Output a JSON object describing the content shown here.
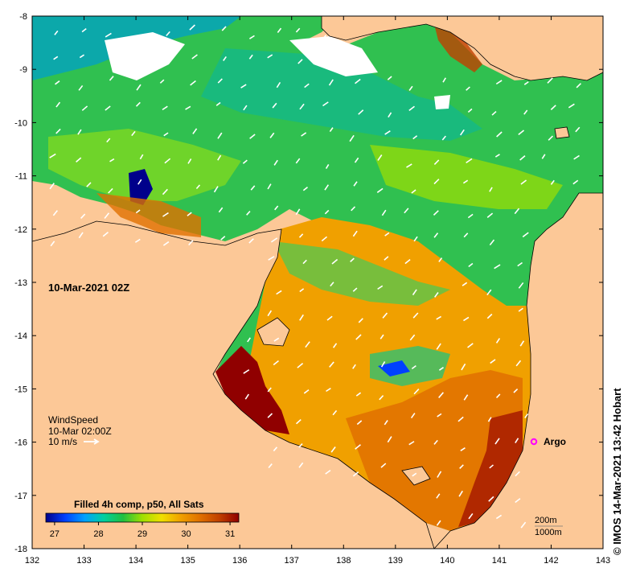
{
  "map": {
    "date_label": "10-Mar-2021 02Z",
    "wind_legend": {
      "title": "WindSpeed",
      "time": "10-Mar 02:00Z",
      "scale": "10 m/s"
    },
    "colorbar": {
      "title": "Filled 4h comp, p50, All Sats",
      "ticks": [
        "27",
        "28",
        "29",
        "30",
        "31"
      ],
      "min": 26.8,
      "max": 31.2,
      "colors": [
        "#00008b",
        "#0040ff",
        "#00a0ff",
        "#00d0a0",
        "#20c040",
        "#a0e000",
        "#f0e000",
        "#f0a000",
        "#e07000",
        "#c04000",
        "#900000"
      ]
    },
    "argo_label": "Argo",
    "contour_labels": [
      "200m",
      "1000m"
    ],
    "x_ticks": [
      "132",
      "133",
      "134",
      "135",
      "136",
      "137",
      "138",
      "139",
      "140",
      "141",
      "142",
      "143"
    ],
    "y_ticks": [
      "-8",
      "-9",
      "-10",
      "-11",
      "-12",
      "-13",
      "-14",
      "-15",
      "-16",
      "-17",
      "-18"
    ],
    "colors": {
      "land": "#fcc897",
      "frame": "#000000",
      "argo": "#ff00ff"
    }
  },
  "copyright": "© IMOS 14-Mar-2021 13:42 Hobart"
}
